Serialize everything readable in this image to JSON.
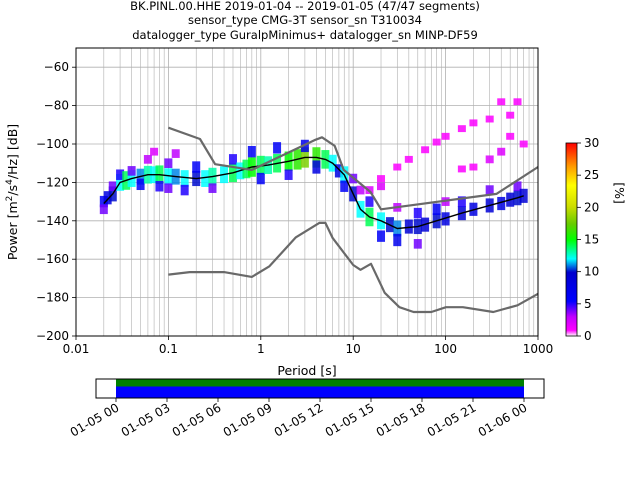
{
  "title_lines": [
    "BK.PINL.00.HHE   2019-01-04 -- 2019-01-05  (47/47 segments)",
    "sensor_type CMG-3T sensor_sn T310034",
    "datalogger_type GuralpMinimus+ datalogger_sn MINP-DF59"
  ],
  "chart_data": {
    "type": "heatmap",
    "title": "BK.PINL.00.HHE   2019-01-04 -- 2019-01-05  (47/47 segments)",
    "xlabel": "Period [s]",
    "ylabel_parts": {
      "prefix": "Power [m",
      "sup1": "2",
      "mid": "/s",
      "sup2": "4",
      "suffix": "/Hz] [dB]"
    },
    "xscale": "log",
    "xlim": [
      0.01,
      1000
    ],
    "ylim": [
      -200,
      -50
    ],
    "xticks": [
      0.01,
      0.1,
      1,
      10,
      100,
      1000
    ],
    "xtick_labels": [
      "0.01",
      "0.1",
      "1",
      "10",
      "100",
      "1000"
    ],
    "yticks": [
      -200,
      -180,
      -160,
      -140,
      -120,
      -100,
      -80,
      -60
    ],
    "ytick_labels": [
      "−200",
      "−180",
      "−160",
      "−140",
      "−120",
      "−100",
      "−80",
      "−60"
    ],
    "grid": true,
    "colorbar": {
      "label": "[%]",
      "range": [
        0,
        30
      ],
      "ticks": [
        0,
        5,
        10,
        15,
        20,
        25,
        30
      ],
      "tick_labels": [
        "0",
        "5",
        "10",
        "15",
        "20",
        "25",
        "30"
      ],
      "colormap": "pqlx"
    },
    "series": [
      {
        "name": "",
        "role": "mean",
        "color": "#000000",
        "points": [
          [
            0.02,
            -131
          ],
          [
            0.025,
            -126
          ],
          [
            0.03,
            -120
          ],
          [
            0.04,
            -118
          ],
          [
            0.06,
            -116
          ],
          [
            0.08,
            -116
          ],
          [
            0.12,
            -117
          ],
          [
            0.2,
            -118
          ],
          [
            0.3,
            -117
          ],
          [
            0.5,
            -115
          ],
          [
            0.8,
            -112
          ],
          [
            1.2,
            -111
          ],
          [
            2,
            -109
          ],
          [
            3,
            -107
          ],
          [
            4,
            -107
          ],
          [
            5,
            -108
          ],
          [
            6,
            -110
          ],
          [
            8,
            -116
          ],
          [
            10,
            -126
          ],
          [
            12,
            -134
          ],
          [
            15,
            -138
          ],
          [
            20,
            -140
          ],
          [
            30,
            -144
          ],
          [
            50,
            -143
          ],
          [
            80,
            -140
          ],
          [
            150,
            -136
          ],
          [
            300,
            -132
          ],
          [
            600,
            -128
          ],
          [
            700,
            -127
          ]
        ]
      },
      {
        "name": "",
        "role": "mode",
        "color": "#00ff00",
        "points": [
          [
            0.02,
            -132
          ],
          [
            0.03,
            -122
          ],
          [
            0.06,
            -117
          ],
          [
            0.2,
            -119
          ],
          [
            0.5,
            -116
          ],
          [
            1,
            -113
          ],
          [
            2,
            -110
          ],
          [
            4,
            -108
          ],
          [
            6,
            -111
          ],
          [
            10,
            -127
          ],
          [
            15,
            -139
          ],
          [
            30,
            -145
          ],
          [
            80,
            -141
          ],
          [
            300,
            -133
          ],
          [
            700,
            -128
          ]
        ]
      },
      {
        "name": "",
        "role": "nhnm",
        "color": "#696969",
        "points": [
          [
            0.1,
            -91.5
          ],
          [
            0.22,
            -97.4
          ],
          [
            0.32,
            -110.5
          ],
          [
            0.8,
            -113.5
          ],
          [
            3.8,
            -98
          ],
          [
            4.6,
            -96.5
          ],
          [
            6.3,
            -101
          ],
          [
            7.9,
            -113.5
          ],
          [
            15.4,
            -125
          ],
          [
            20,
            -134
          ],
          [
            354.8,
            -126
          ],
          [
            1000,
            -112
          ]
        ]
      },
      {
        "name": "",
        "role": "nlnm",
        "color": "#696969",
        "points": [
          [
            0.1,
            -168
          ],
          [
            0.17,
            -166.7
          ],
          [
            0.4,
            -166.7
          ],
          [
            0.8,
            -169.2
          ],
          [
            1.24,
            -163.7
          ],
          [
            2.4,
            -148.6
          ],
          [
            4.3,
            -141.1
          ],
          [
            5,
            -141.1
          ],
          [
            6,
            -149
          ],
          [
            10,
            -163
          ],
          [
            12,
            -165.5
          ],
          [
            15.6,
            -162.4
          ],
          [
            21.9,
            -177.5
          ],
          [
            31.6,
            -185
          ],
          [
            45,
            -187.5
          ],
          [
            70,
            -187.5
          ],
          [
            101,
            -185
          ],
          [
            154,
            -185
          ],
          [
            328,
            -187.5
          ],
          [
            600,
            -184
          ],
          [
            1000,
            -178
          ]
        ]
      }
    ],
    "density": [
      [
        0.02,
        -130,
        6
      ],
      [
        0.02,
        -134,
        4
      ],
      [
        0.022,
        -128,
        8
      ],
      [
        0.025,
        -126,
        10
      ],
      [
        0.025,
        -122,
        4
      ],
      [
        0.03,
        -120,
        12
      ],
      [
        0.03,
        -116,
        5
      ],
      [
        0.035,
        -119,
        14
      ],
      [
        0.04,
        -118,
        12
      ],
      [
        0.04,
        -114,
        4
      ],
      [
        0.05,
        -117,
        11
      ],
      [
        0.05,
        -121,
        6
      ],
      [
        0.06,
        -116,
        13
      ],
      [
        0.06,
        -108,
        3
      ],
      [
        0.07,
        -116,
        12
      ],
      [
        0.07,
        -104,
        2
      ],
      [
        0.08,
        -116,
        14
      ],
      [
        0.08,
        -122,
        5
      ],
      [
        0.1,
        -117,
        12
      ],
      [
        0.1,
        -110,
        4
      ],
      [
        0.1,
        -123,
        4
      ],
      [
        0.12,
        -117,
        11
      ],
      [
        0.12,
        -105,
        3
      ],
      [
        0.15,
        -118,
        12
      ],
      [
        0.15,
        -124,
        5
      ],
      [
        0.2,
        -118,
        10
      ],
      [
        0.2,
        -112,
        6
      ],
      [
        0.25,
        -118,
        12
      ],
      [
        0.3,
        -117,
        13
      ],
      [
        0.3,
        -123,
        4
      ],
      [
        0.4,
        -116,
        12
      ],
      [
        0.5,
        -115,
        14
      ],
      [
        0.5,
        -108,
        5
      ],
      [
        0.6,
        -114,
        12
      ],
      [
        0.7,
        -113,
        14
      ],
      [
        0.8,
        -112,
        15
      ],
      [
        0.8,
        -104,
        6
      ],
      [
        1,
        -111,
        14
      ],
      [
        1,
        -118,
        6
      ],
      [
        1.2,
        -111,
        13
      ],
      [
        1.5,
        -110,
        14
      ],
      [
        1.5,
        -102,
        6
      ],
      [
        2,
        -109,
        15
      ],
      [
        2,
        -116,
        5
      ],
      [
        2.5,
        -108,
        16
      ],
      [
        3,
        -107,
        18
      ],
      [
        3,
        -101,
        7
      ],
      [
        4,
        -107,
        16
      ],
      [
        4,
        -112,
        8
      ],
      [
        5,
        -108,
        14
      ],
      [
        6,
        -110,
        12
      ],
      [
        7,
        -114,
        8
      ],
      [
        8,
        -116,
        12
      ],
      [
        8,
        -122,
        6
      ],
      [
        10,
        -126,
        10
      ],
      [
        10,
        -118,
        4
      ],
      [
        12,
        -134,
        12
      ],
      [
        12,
        -124,
        3
      ],
      [
        15,
        -138,
        14
      ],
      [
        15,
        -130,
        5
      ],
      [
        20,
        -140,
        12
      ],
      [
        20,
        -148,
        6
      ],
      [
        20,
        -122,
        2
      ],
      [
        25,
        -142,
        10
      ],
      [
        30,
        -144,
        11
      ],
      [
        30,
        -150,
        7
      ],
      [
        30,
        -133,
        3
      ],
      [
        40,
        -143,
        9
      ],
      [
        50,
        -143,
        10
      ],
      [
        50,
        -136,
        5
      ],
      [
        50,
        -152,
        4
      ],
      [
        60,
        -142,
        9
      ],
      [
        80,
        -140,
        10
      ],
      [
        80,
        -134,
        6
      ],
      [
        100,
        -139,
        8
      ],
      [
        100,
        -130,
        3
      ],
      [
        150,
        -136,
        9
      ],
      [
        150,
        -130,
        5
      ],
      [
        200,
        -134,
        8
      ],
      [
        300,
        -132,
        9
      ],
      [
        300,
        -124,
        4
      ],
      [
        400,
        -131,
        8
      ],
      [
        500,
        -129,
        9
      ],
      [
        600,
        -128,
        10
      ],
      [
        600,
        -122,
        4
      ],
      [
        700,
        -127,
        9
      ],
      [
        15,
        -124,
        2
      ],
      [
        20,
        -118,
        1
      ],
      [
        30,
        -112,
        1
      ],
      [
        40,
        -108,
        1
      ],
      [
        60,
        -103,
        1
      ],
      [
        80,
        -99,
        1
      ],
      [
        100,
        -96,
        1
      ],
      [
        150,
        -92,
        1
      ],
      [
        200,
        -89,
        1
      ],
      [
        300,
        -87,
        1
      ],
      [
        500,
        -85,
        1
      ],
      [
        400,
        -78,
        1
      ],
      [
        600,
        -78,
        1
      ],
      [
        500,
        -96,
        1
      ],
      [
        700,
        -100,
        1
      ],
      [
        400,
        -104,
        2
      ],
      [
        300,
        -108,
        2
      ],
      [
        200,
        -112,
        1
      ],
      [
        150,
        -113,
        1
      ]
    ]
  },
  "time_panel": {
    "tick_labels": [
      "01-05 00",
      "01-05 03",
      "01-05 06",
      "01-05 09",
      "01-05 12",
      "01-05 15",
      "01-05 18",
      "01-05 21",
      "01-06 00"
    ],
    "tick_fracs": [
      0,
      0.125,
      0.25,
      0.375,
      0.5,
      0.625,
      0.75,
      0.875,
      1.0
    ],
    "start_frac": 0.0,
    "end_frac": 1.0,
    "data_color": "#0000ff",
    "gap_color": "#008000"
  }
}
